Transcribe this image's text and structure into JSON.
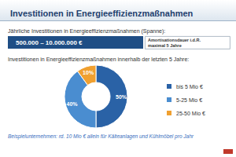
{
  "chart_data": {
    "type": "pie",
    "title": "Investitionen in Energieeffizienzmaßnahmen",
    "subtitle": "Jährliche Investitionen in Energieeffizienzmaßnahmen (Spanne):",
    "annotations": [
      "500.000 – 10.000.000 €",
      "Amortisationsdauer i.d.R.\nmaximal 5 Jahre",
      "Investitionen in Energieeffizienzmaßnahmen innerhalb der letzten 5 Jahre:",
      "Beispielunternehmen: rd. 10 Mio € allein für Kälteanlagen und Kühlmöbel pro Jahr"
    ],
    "categories": [
      "bis 5 Mio €",
      "5-25 Mio €",
      "25-50 Mio €"
    ],
    "values": [
      50,
      40,
      10
    ],
    "value_labels": [
      "50%",
      "40%",
      "10%"
    ],
    "colors": [
      "#2a62a6",
      "#4a8dd0",
      "#f0a030"
    ],
    "data_labels": true,
    "legend": "right"
  }
}
